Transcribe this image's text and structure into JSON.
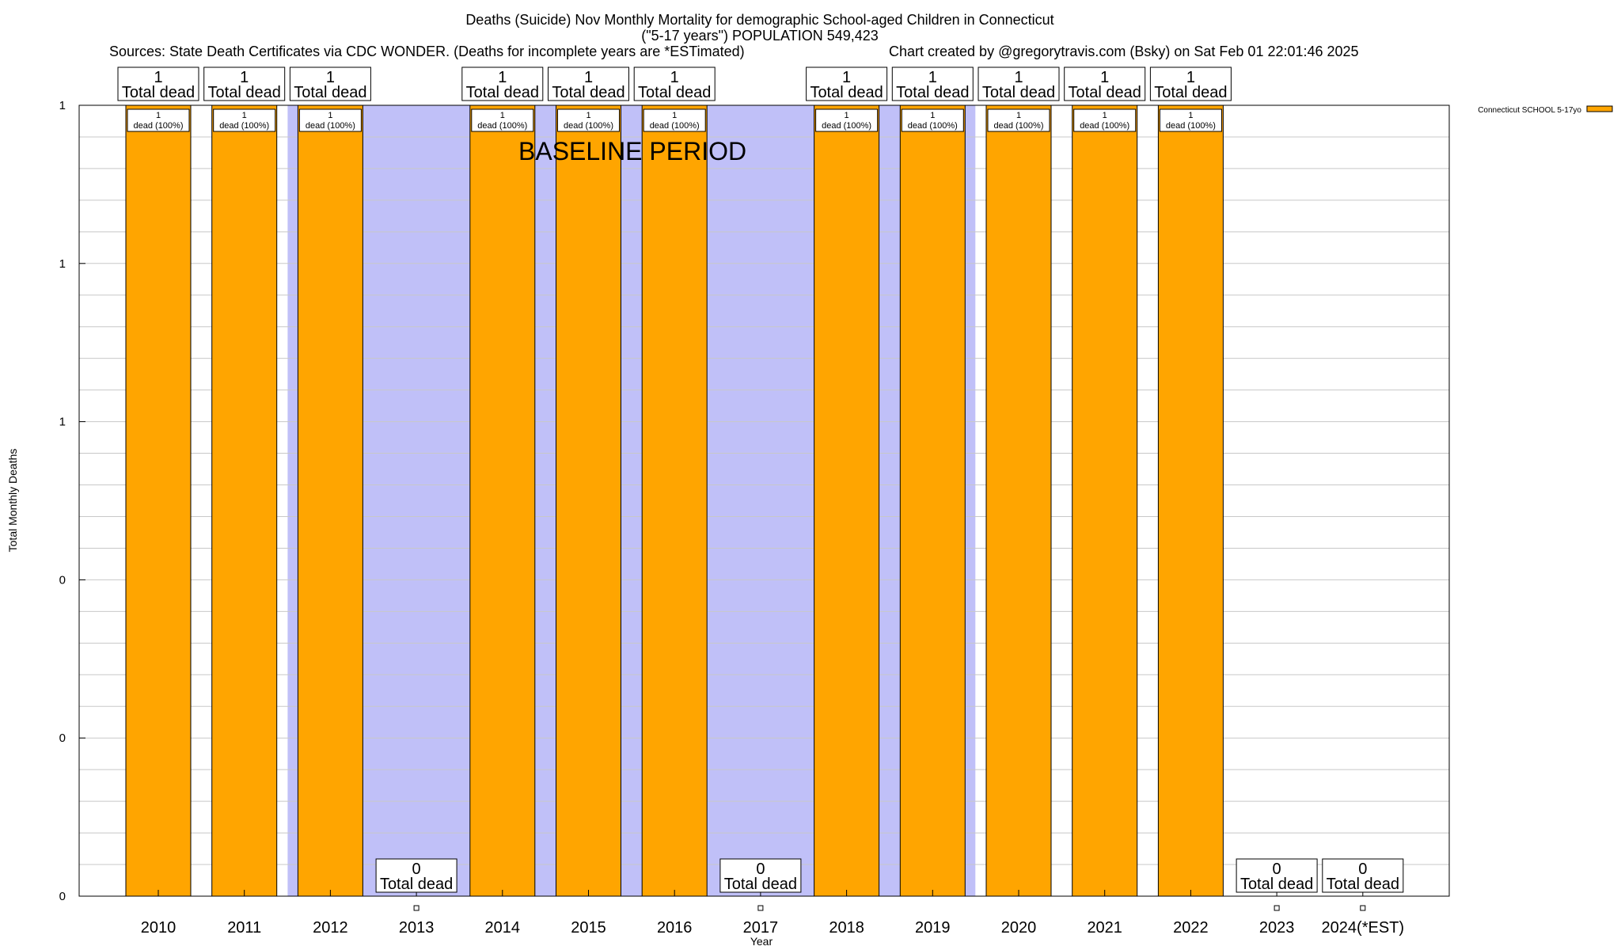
{
  "header": {
    "title_line1": "Deaths (Suicide) Nov Monthly Mortality for demographic School-aged Children in Connecticut",
    "title_line2": "(\"5-17 years\") POPULATION 549,423",
    "sources": "Sources: State Death Certificates via CDC WONDER. (Deaths for incomplete years are *ESTimated)",
    "credit": "Chart created by @gregorytravis.com (Bsky) on Sat Feb 01 22:01:46 2025"
  },
  "chart_data": {
    "type": "bar",
    "title": "Deaths (Suicide) Nov Monthly Mortality for demographic School-aged Children in Connecticut",
    "xlabel": "Year",
    "ylabel": "Total Monthly Deaths",
    "ylim": [
      0,
      1
    ],
    "y_tick_labels": [
      "0",
      "0",
      "0",
      "1",
      "1",
      "1"
    ],
    "grid": true,
    "legend_position": "top-right",
    "categories": [
      "2010",
      "2011",
      "2012",
      "2013",
      "2014",
      "2015",
      "2016",
      "2017",
      "2018",
      "2019",
      "2020",
      "2021",
      "2022",
      "2023",
      "2024(*EST)"
    ],
    "series": [
      {
        "name": "Connecticut SCHOOL 5-17yo",
        "color": "#ffa500",
        "values": [
          1,
          1,
          1,
          0,
          1,
          1,
          1,
          0,
          1,
          1,
          1,
          1,
          1,
          0,
          0
        ]
      }
    ],
    "total_labels": [
      "1",
      "1",
      "1",
      "0",
      "1",
      "1",
      "1",
      "0",
      "1",
      "1",
      "1",
      "1",
      "1",
      "0",
      "0"
    ],
    "total_suffix": "Total dead",
    "segment_labels": [
      "1",
      "1",
      "1",
      "",
      "1",
      "1",
      "1",
      "",
      "1",
      "1",
      "1",
      "1",
      "1",
      "",
      ""
    ],
    "segment_suffix": "dead (100%)",
    "baseline": {
      "label": "BASELINE PERIOD",
      "color": "#c0c0f8",
      "start": 2012,
      "end": 2019
    }
  }
}
